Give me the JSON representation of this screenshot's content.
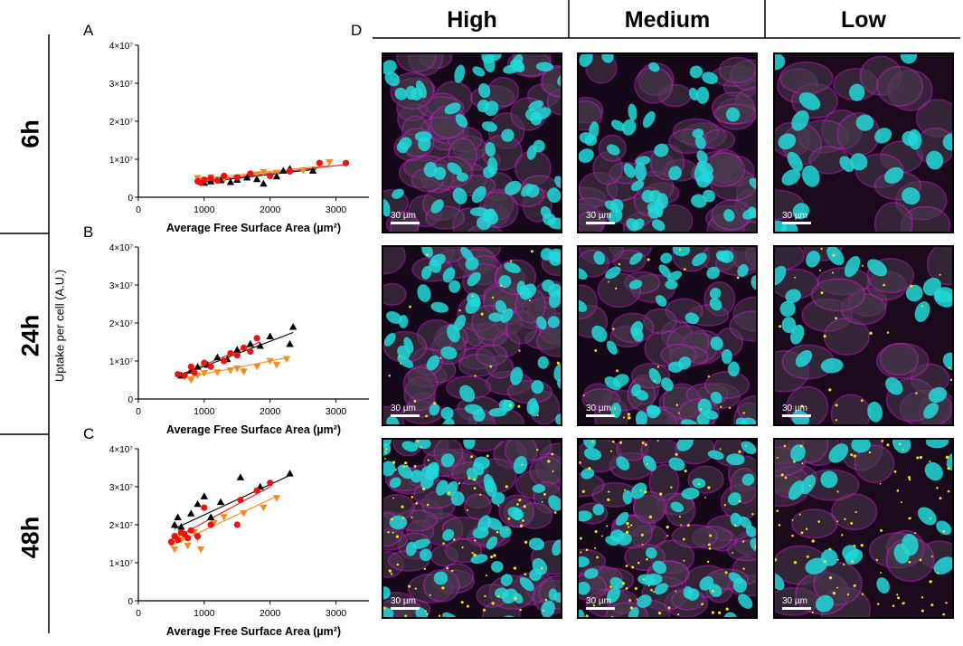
{
  "rows": [
    {
      "label": "6h"
    },
    {
      "label": "24h"
    },
    {
      "label": "48h"
    }
  ],
  "panel_labels": {
    "a": "A",
    "b": "B",
    "c": "C",
    "d": "D"
  },
  "columns": [
    {
      "label": "High"
    },
    {
      "label": "Medium"
    },
    {
      "label": "Low"
    }
  ],
  "scale_bar_label": "30 µm",
  "shared_ylabel": "Uptake per cell (A.U.)",
  "colors": {
    "black": "#000000",
    "red": "#ee1111",
    "orange": "#f28c22",
    "cyan": "#22d8d8",
    "magenta": "#c020c0",
    "yellow": "#f0e020"
  },
  "chart_data": [
    {
      "type": "scatter",
      "panel": "A",
      "xlabel": "Average Free Surface Area (µm²)",
      "ylabel": "",
      "xlim": [
        0,
        3500
      ],
      "ylim": [
        0,
        40000000
      ],
      "xticks": [
        "0",
        "1000",
        "2000",
        "3000"
      ],
      "yticks": [
        "0",
        "1×10⁷",
        "2×10⁷",
        "3×10⁷",
        "4×10⁷"
      ],
      "series": [
        {
          "name": "black",
          "marker": "triangle-up",
          "color": "#000000",
          "x": [
            1000,
            1100,
            1250,
            1400,
            1500,
            1650,
            1800,
            1900,
            2100,
            2200,
            2300,
            2650
          ],
          "y": [
            3800000,
            4200000,
            4500000,
            4000000,
            4600000,
            5200000,
            4800000,
            3600000,
            5500000,
            7000000,
            7500000,
            7000000
          ],
          "fit": [
            [
              950,
              3900000
            ],
            [
              2700,
              7400000
            ]
          ]
        },
        {
          "name": "red",
          "marker": "circle",
          "color": "#ee1111",
          "x": [
            900,
            950,
            1000,
            1100,
            1200,
            1300,
            1500,
            1700,
            2000,
            2300,
            2750,
            3150
          ],
          "y": [
            4200000,
            3800000,
            4600000,
            5000000,
            4400000,
            5600000,
            5200000,
            6200000,
            5600000,
            6800000,
            9000000,
            9000000
          ],
          "fit": [
            [
              900,
              4200000
            ],
            [
              3150,
              8600000
            ]
          ]
        },
        {
          "name": "orange",
          "marker": "triangle-down",
          "color": "#f28c22",
          "x": [
            900,
            1000,
            1100,
            1300,
            1500,
            1800,
            1900,
            2000,
            2100,
            2500,
            2900
          ],
          "y": [
            5000000,
            4400000,
            5200000,
            4600000,
            5000000,
            6000000,
            6600000,
            5800000,
            6400000,
            7000000,
            9200000
          ],
          "fit": [
            [
              900,
              4800000
            ],
            [
              2900,
              8400000
            ]
          ]
        }
      ]
    },
    {
      "type": "scatter",
      "panel": "B",
      "xlabel": "Average Free Surface Area (µm²)",
      "ylabel": "",
      "xlim": [
        0,
        3500
      ],
      "ylim": [
        0,
        40000000
      ],
      "xticks": [
        "0",
        "1000",
        "2000",
        "3000"
      ],
      "yticks": [
        "0",
        "1×10⁷",
        "2×10⁷",
        "3×10⁷",
        "4×10⁷"
      ],
      "series": [
        {
          "name": "black",
          "marker": "triangle-up",
          "color": "#000000",
          "x": [
            650,
            800,
            900,
            1050,
            1200,
            1350,
            1500,
            1700,
            1850,
            2000,
            2300,
            2350
          ],
          "y": [
            6200000,
            7500000,
            8500000,
            9000000,
            11000000,
            10500000,
            13000000,
            14500000,
            14000000,
            16500000,
            14500000,
            19000000
          ],
          "fit": [
            [
              650,
              6300000
            ],
            [
              2350,
              17500000
            ]
          ]
        },
        {
          "name": "red",
          "marker": "circle",
          "color": "#ee1111",
          "x": [
            600,
            700,
            800,
            850,
            1000,
            1100,
            1300,
            1400,
            1500,
            1600,
            1700,
            1800
          ],
          "y": [
            6500000,
            6200000,
            8500000,
            7000000,
            9500000,
            8500000,
            10000000,
            12000000,
            11500000,
            13500000,
            12500000,
            16000000
          ],
          "fit": [
            [
              600,
              6200000
            ],
            [
              1850,
              15000000
            ]
          ]
        },
        {
          "name": "orange",
          "marker": "triangle-down",
          "color": "#f28c22",
          "x": [
            700,
            800,
            900,
            1000,
            1200,
            1400,
            1500,
            1600,
            1800,
            2000,
            2100,
            2250
          ],
          "y": [
            5800000,
            5000000,
            6200000,
            6800000,
            7000000,
            7500000,
            8000000,
            7200000,
            8500000,
            10000000,
            9000000,
            10500000
          ],
          "fit": [
            [
              650,
              5400000
            ],
            [
              2300,
              11000000
            ]
          ]
        }
      ]
    },
    {
      "type": "scatter",
      "panel": "C",
      "xlabel": "Average Free Surface Area (µm²)",
      "ylabel": "",
      "xlim": [
        0,
        3500
      ],
      "ylim": [
        0,
        40000000
      ],
      "xticks": [
        "0",
        "1000",
        "2000",
        "3000"
      ],
      "yticks": [
        "0",
        "1×10⁷",
        "2×10⁷",
        "3×10⁷",
        "4×10⁷"
      ],
      "series": [
        {
          "name": "black",
          "marker": "triangle-up",
          "color": "#000000",
          "x": [
            550,
            600,
            650,
            800,
            900,
            1000,
            1100,
            1250,
            1550,
            1850,
            2300
          ],
          "y": [
            20000000,
            22000000,
            19500000,
            23000000,
            25500000,
            27500000,
            22000000,
            26000000,
            32500000,
            30000000,
            33500000
          ],
          "fit": [
            [
              550,
              19000000
            ],
            [
              2300,
              33000000
            ]
          ]
        },
        {
          "name": "red",
          "marker": "circle",
          "color": "#ee1111",
          "x": [
            500,
            550,
            600,
            650,
            700,
            750,
            800,
            900,
            1000,
            1100,
            1500,
            1550,
            1800,
            2000
          ],
          "y": [
            15500000,
            17000000,
            16000000,
            18000000,
            17500000,
            16500000,
            18500000,
            17000000,
            24500000,
            20000000,
            20000000,
            26500000,
            29000000,
            31000000
          ],
          "fit": [
            [
              500,
              16000000
            ],
            [
              2000,
              30000000
            ]
          ]
        },
        {
          "name": "orange",
          "marker": "triangle-down",
          "color": "#f28c22",
          "x": [
            500,
            550,
            600,
            650,
            750,
            850,
            900,
            950,
            1150,
            1300,
            1600,
            1900,
            2100
          ],
          "y": [
            15000000,
            13500000,
            17000000,
            16000000,
            14500000,
            18000000,
            16500000,
            13500000,
            20500000,
            22000000,
            23000000,
            24500000,
            27000000
          ],
          "fit": [
            [
              500,
              14500000
            ],
            [
              2100,
              27500000
            ]
          ]
        }
      ]
    }
  ]
}
